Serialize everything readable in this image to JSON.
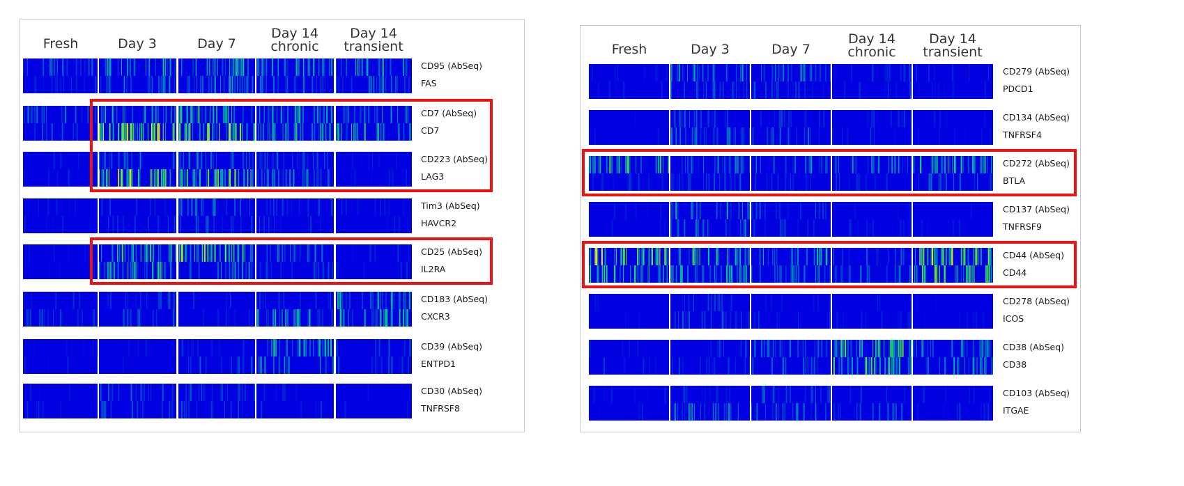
{
  "chart_data": [
    {
      "type": "heatmap",
      "columns": [
        "Fresh",
        "Day 3",
        "Day 7",
        "Day 14 chronic",
        "Day 14 transient"
      ],
      "rows": [
        {
          "abseq": "CD95 (AbSeq)",
          "gene": "FAS",
          "highlight": false,
          "intensity": {
            "top": [
              0.25,
              0.45,
              0.55,
              0.45,
              0.55
            ],
            "bottom": [
              0.1,
              0.35,
              0.4,
              0.3,
              0.35
            ]
          }
        },
        {
          "abseq": "CD7 (AbSeq)",
          "gene": "CD7",
          "highlight": true,
          "intensity": {
            "top": [
              0.3,
              0.55,
              0.55,
              0.45,
              0.4
            ],
            "bottom": [
              0.2,
              0.75,
              0.75,
              0.55,
              0.5
            ]
          }
        },
        {
          "abseq": "CD223 (AbSeq)",
          "gene": "LAG3",
          "highlight": true,
          "intensity": {
            "top": [
              0.05,
              0.3,
              0.35,
              0.25,
              0.03
            ],
            "bottom": [
              0.05,
              0.8,
              0.65,
              0.4,
              0.05
            ]
          }
        },
        {
          "abseq": "Tim3 (AbSeq)",
          "gene": "HAVCR2",
          "highlight": false,
          "intensity": {
            "top": [
              0.02,
              0.1,
              0.3,
              0.15,
              0.1
            ],
            "bottom": [
              0.02,
              0.15,
              0.25,
              0.15,
              0.1
            ]
          }
        },
        {
          "abseq": "CD25 (AbSeq)",
          "gene": "IL2RA",
          "highlight": true,
          "intensity": {
            "top": [
              0.02,
              0.55,
              0.7,
              0.3,
              0.1
            ],
            "bottom": [
              0.02,
              0.55,
              0.35,
              0.2,
              0.1
            ]
          }
        },
        {
          "abseq": "CD183 (AbSeq)",
          "gene": "CXCR3",
          "highlight": false,
          "intensity": {
            "top": [
              0.15,
              0.15,
              0.1,
              0.15,
              0.45
            ],
            "bottom": [
              0.2,
              0.2,
              0.1,
              0.45,
              0.5
            ]
          }
        },
        {
          "abseq": "CD39 (AbSeq)",
          "gene": "ENTPD1",
          "highlight": false,
          "intensity": {
            "top": [
              0.02,
              0.02,
              0.1,
              0.5,
              0.2
            ],
            "bottom": [
              0.02,
              0.02,
              0.2,
              0.45,
              0.2
            ]
          }
        },
        {
          "abseq": "CD30 (AbSeq)",
          "gene": "TNFRSF8",
          "highlight": false,
          "intensity": {
            "top": [
              0.05,
              0.25,
              0.25,
              0.1,
              0.05
            ],
            "bottom": [
              0.05,
              0.2,
              0.2,
              0.1,
              0.05
            ]
          }
        }
      ]
    },
    {
      "type": "heatmap",
      "columns": [
        "Fresh",
        "Day 3",
        "Day 7",
        "Day 14 chronic",
        "Day 14 transient"
      ],
      "rows": [
        {
          "abseq": "CD279 (AbSeq)",
          "gene": "PDCD1",
          "highlight": false,
          "intensity": {
            "top": [
              0.05,
              0.35,
              0.3,
              0.15,
              0.05
            ],
            "bottom": [
              0.05,
              0.3,
              0.2,
              0.1,
              0.05
            ]
          }
        },
        {
          "abseq": "CD134 (AbSeq)",
          "gene": "TNFRSF4",
          "highlight": false,
          "intensity": {
            "top": [
              0.02,
              0.25,
              0.2,
              0.1,
              0.02
            ],
            "bottom": [
              0.02,
              0.3,
              0.25,
              0.1,
              0.05
            ]
          }
        },
        {
          "abseq": "CD272 (AbSeq)",
          "gene": "BTLA",
          "highlight": true,
          "intensity": {
            "top": [
              0.6,
              0.35,
              0.35,
              0.35,
              0.55
            ],
            "bottom": [
              0.1,
              0.2,
              0.15,
              0.1,
              0.25
            ]
          }
        },
        {
          "abseq": "CD137 (AbSeq)",
          "gene": "TNFRSF9",
          "highlight": false,
          "intensity": {
            "top": [
              0.02,
              0.4,
              0.2,
              0.05,
              0.02
            ],
            "bottom": [
              0.02,
              0.3,
              0.15,
              0.05,
              0.02
            ]
          }
        },
        {
          "abseq": "CD44 (AbSeq)",
          "gene": "CD44",
          "highlight": true,
          "intensity": {
            "top": [
              0.75,
              0.55,
              0.45,
              0.3,
              0.75
            ],
            "bottom": [
              0.55,
              0.5,
              0.4,
              0.3,
              0.65
            ]
          }
        },
        {
          "abseq": "CD278 (AbSeq)",
          "gene": "ICOS",
          "highlight": false,
          "intensity": {
            "top": [
              0.02,
              0.2,
              0.1,
              0.05,
              0.02
            ],
            "bottom": [
              0.02,
              0.2,
              0.1,
              0.05,
              0.02
            ]
          }
        },
        {
          "abseq": "CD38 (AbSeq)",
          "gene": "CD38",
          "highlight": false,
          "intensity": {
            "top": [
              0.1,
              0.15,
              0.3,
              0.6,
              0.35
            ],
            "bottom": [
              0.1,
              0.15,
              0.3,
              0.6,
              0.4
            ]
          }
        },
        {
          "abseq": "CD103 (AbSeq)",
          "gene": "ITGAE",
          "highlight": false,
          "intensity": {
            "top": [
              0.05,
              0.1,
              0.25,
              0.1,
              0.05
            ],
            "bottom": [
              0.05,
              0.35,
              0.3,
              0.2,
              0.1
            ]
          }
        }
      ]
    }
  ],
  "colors": {
    "low": "#0000e0",
    "highlight_box": "#ee1111",
    "border": "#c8c8c8",
    "separator": "#ffffff"
  }
}
